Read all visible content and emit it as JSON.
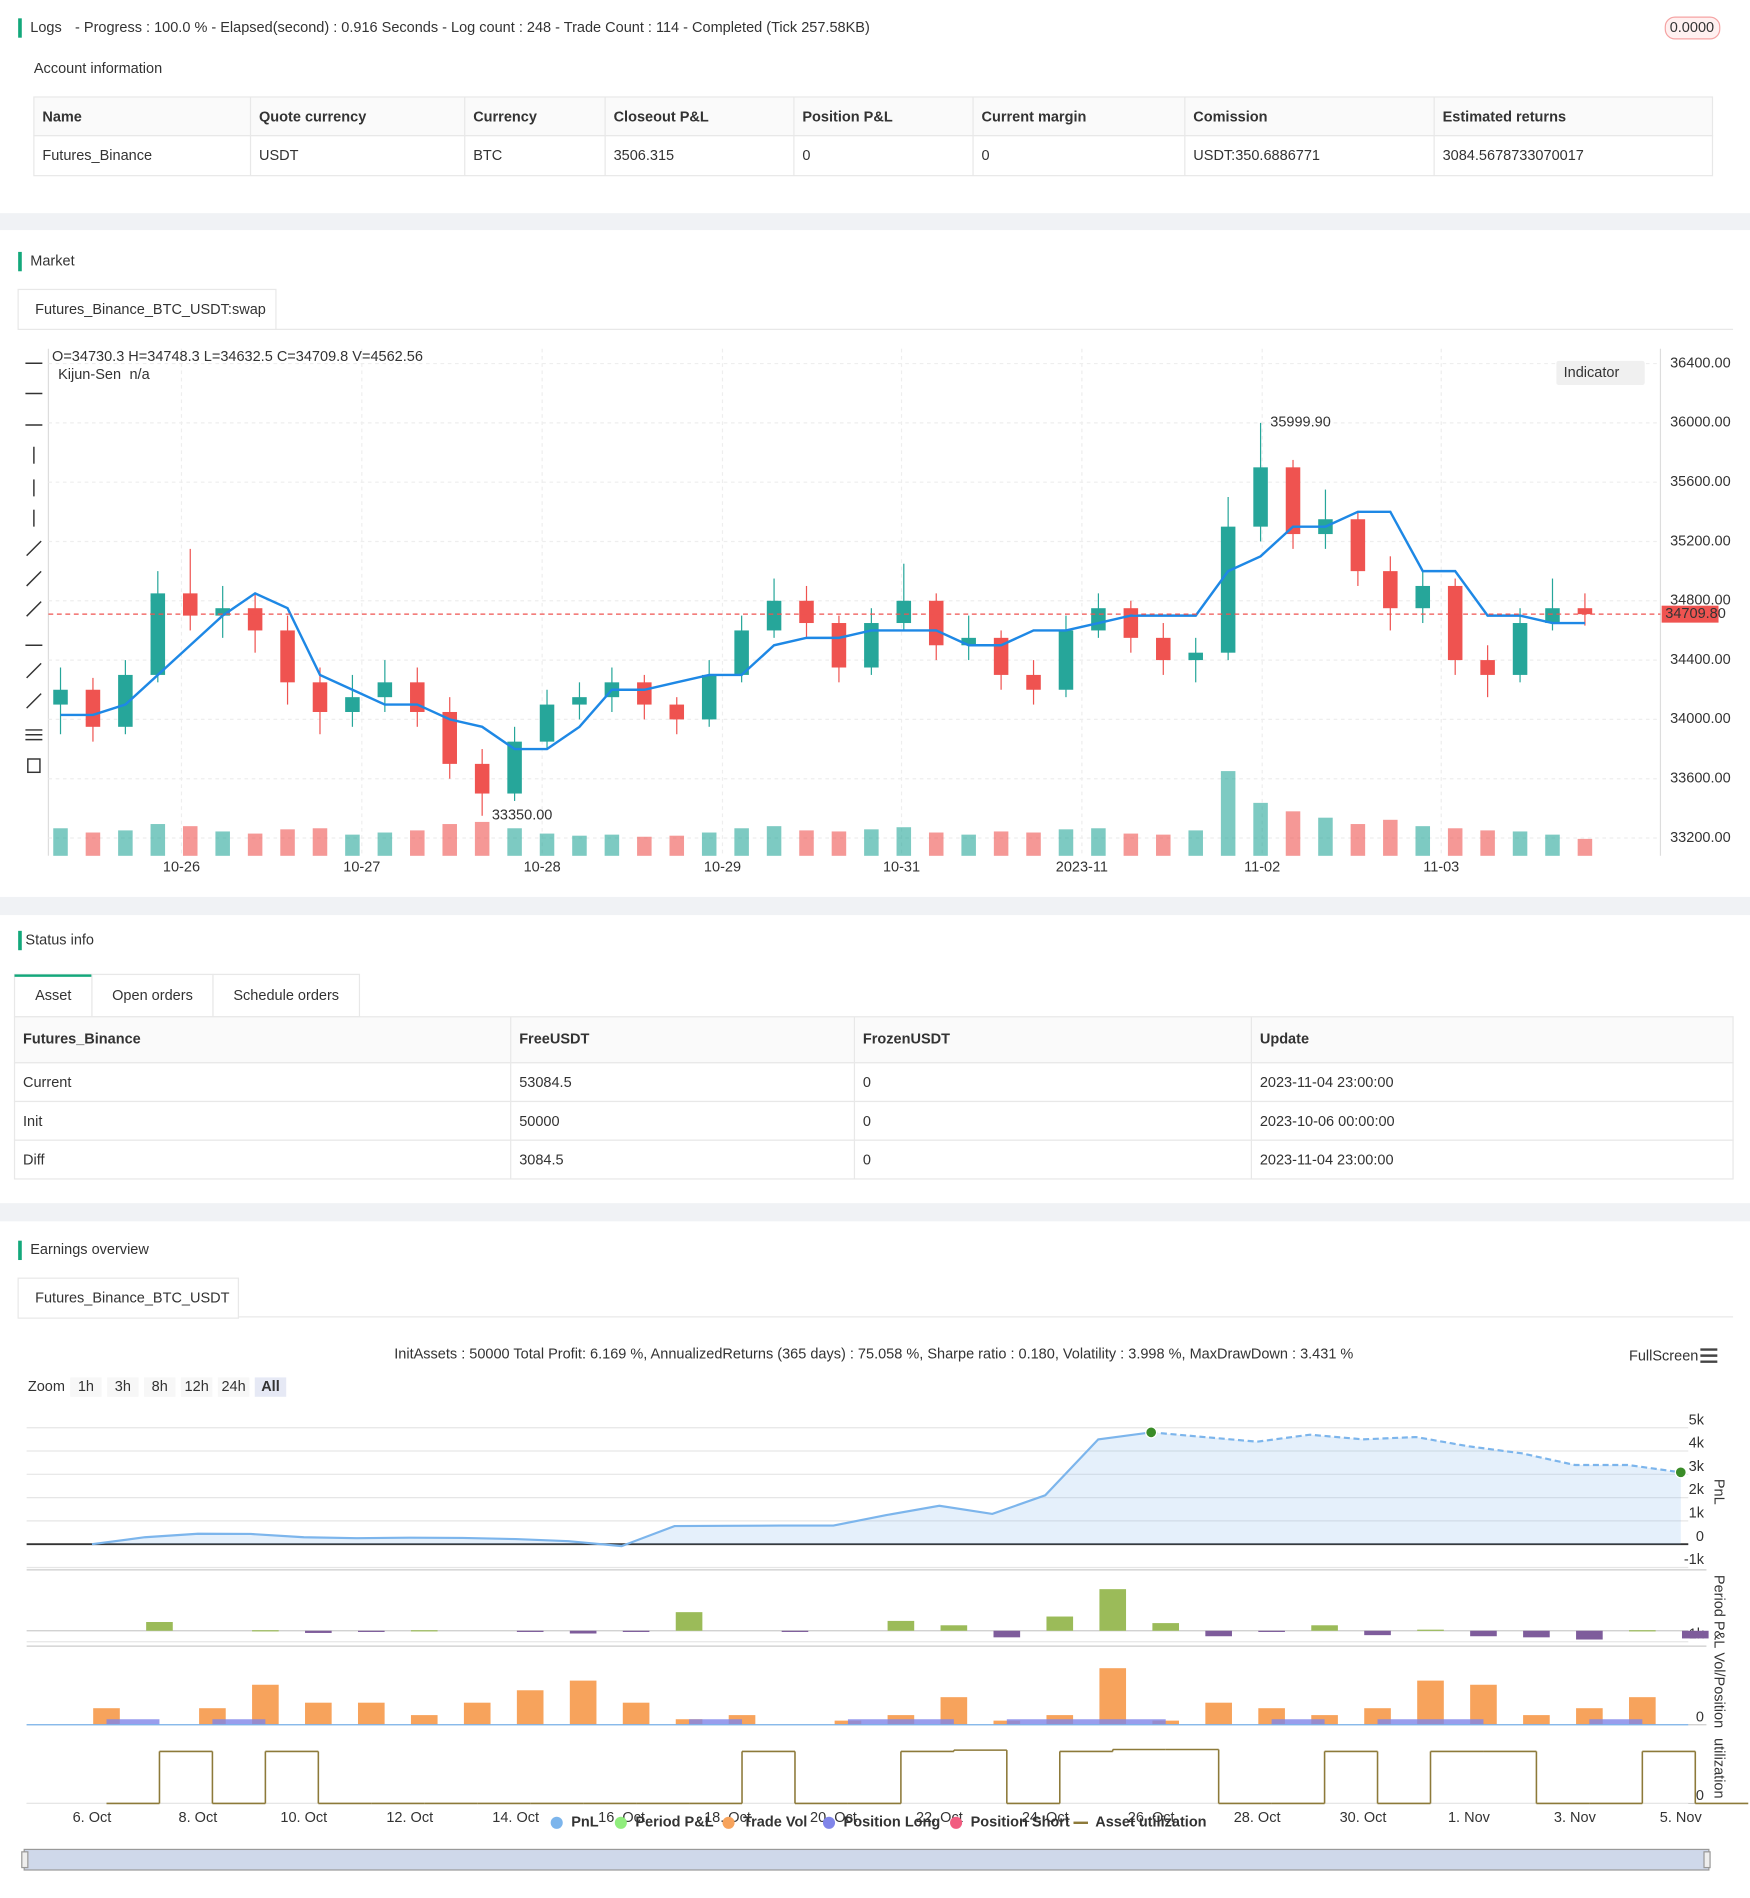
{
  "logs": {
    "title": "Logs",
    "progress": "- Progress : 100.0 % - Elapsed(second) : 0.916 Seconds - Log count : 248 - Trade Count : 114 - Completed (Tick 257.58KB)",
    "badge": "0.0000"
  },
  "account": {
    "title": "Account information",
    "headers": [
      "Name",
      "Quote currency",
      "Currency",
      "Closeout P&L",
      "Position P&L",
      "Current margin",
      "Comission",
      "Estimated returns"
    ],
    "rows": [
      [
        "Futures_Binance",
        "USDT",
        "BTC",
        "3506.315",
        "0",
        "0",
        "USDT:350.6886771",
        "3084.5678733070017"
      ]
    ]
  },
  "market": {
    "title": "Market",
    "tab": "Futures_Binance_BTC_USDT:swap",
    "ohlc": "O=34730.3 H=34748.3 L=34632.5 C=34709.8 V=4562.56",
    "indicator": {
      "name": "Kijun-Sen",
      "value": "n/a"
    },
    "indicator_button": "Indicator",
    "price_label": "34709.80",
    "high_label": "35999.90",
    "low_label": "33350.00",
    "chart_data": {
      "type": "candlestick",
      "up_color": "#26a69a",
      "down_color": "#ef5350",
      "line_color": "#1e88e5",
      "ylim": [
        33080,
        36500
      ],
      "yticks": [
        {
          "value": 33200,
          "label": "33200.00"
        },
        {
          "value": 33600,
          "label": "33600.00"
        },
        {
          "value": 34000,
          "label": "34000.00"
        },
        {
          "value": 34400,
          "label": "34400.00"
        },
        {
          "value": 34800,
          "label": "34800.00"
        },
        {
          "value": 35200,
          "label": "35200.00"
        },
        {
          "value": 35600,
          "label": "35600.00"
        },
        {
          "value": 36000,
          "label": "36000.00"
        },
        {
          "value": 36400,
          "label": "36400.00"
        }
      ],
      "xticks": [
        {
          "value": 3.73,
          "label": "10-26"
        },
        {
          "value": 9.29,
          "label": "10-27"
        },
        {
          "value": 14.85,
          "label": "10-28"
        },
        {
          "value": 20.41,
          "label": "10-29"
        },
        {
          "value": 25.93,
          "label": "10-31"
        },
        {
          "value": 31.49,
          "label": "2023-11"
        },
        {
          "value": 37.05,
          "label": "11-02"
        },
        {
          "value": 42.57,
          "label": "11-03"
        }
      ],
      "candles": [
        [
          34100,
          34350,
          33900,
          34200
        ],
        [
          34200,
          34280,
          33850,
          33950
        ],
        [
          33950,
          34400,
          33900,
          34300
        ],
        [
          34300,
          35000,
          34250,
          34850
        ],
        [
          34850,
          35150,
          34600,
          34700
        ],
        [
          34700,
          34900,
          34550,
          34750
        ],
        [
          34750,
          34850,
          34450,
          34600
        ],
        [
          34600,
          34700,
          34100,
          34250
        ],
        [
          34250,
          34350,
          33900,
          34050
        ],
        [
          34050,
          34300,
          33950,
          34150
        ],
        [
          34150,
          34400,
          34050,
          34250
        ],
        [
          34250,
          34350,
          33950,
          34050
        ],
        [
          34050,
          34150,
          33600,
          33700
        ],
        [
          33700,
          33800,
          33350,
          33500
        ],
        [
          33500,
          33950,
          33450,
          33850
        ],
        [
          33850,
          34200,
          33800,
          34100
        ],
        [
          34100,
          34250,
          34000,
          34150
        ],
        [
          34150,
          34350,
          34050,
          34250
        ],
        [
          34250,
          34300,
          34000,
          34100
        ],
        [
          34100,
          34150,
          33900,
          34000
        ],
        [
          34000,
          34400,
          33950,
          34300
        ],
        [
          34300,
          34700,
          34250,
          34600
        ],
        [
          34600,
          34950,
          34550,
          34800
        ],
        [
          34800,
          34900,
          34550,
          34650
        ],
        [
          34650,
          34700,
          34250,
          34350
        ],
        [
          34350,
          34750,
          34300,
          34650
        ],
        [
          34650,
          35050,
          34600,
          34800
        ],
        [
          34800,
          34850,
          34400,
          34500
        ],
        [
          34500,
          34700,
          34400,
          34550
        ],
        [
          34550,
          34600,
          34200,
          34300
        ],
        [
          34300,
          34400,
          34100,
          34200
        ],
        [
          34200,
          34700,
          34150,
          34600
        ],
        [
          34600,
          34850,
          34550,
          34750
        ],
        [
          34750,
          34800,
          34450,
          34550
        ],
        [
          34550,
          34650,
          34300,
          34400
        ],
        [
          34400,
          34550,
          34250,
          34450
        ],
        [
          34450,
          35500,
          34400,
          35300
        ],
        [
          35300,
          35999.9,
          35200,
          35700
        ],
        [
          35700,
          35750,
          35150,
          35250
        ],
        [
          35250,
          35550,
          35150,
          35350
        ],
        [
          35350,
          35400,
          34900,
          35000
        ],
        [
          35000,
          35100,
          34600,
          34750
        ],
        [
          34750,
          35000,
          34650,
          34900
        ],
        [
          34900,
          34950,
          34300,
          34400
        ],
        [
          34400,
          34500,
          34150,
          34300
        ],
        [
          34300,
          34750,
          34250,
          34650
        ],
        [
          34650,
          34950,
          34600,
          34750
        ],
        [
          34750,
          34850,
          34632.5,
          34709.8
        ]
      ],
      "volumes": [
        2600,
        2200,
        2400,
        3000,
        2800,
        2300,
        2100,
        2500,
        2600,
        2000,
        2200,
        2400,
        3000,
        3200,
        2600,
        2100,
        1900,
        2000,
        1800,
        1900,
        2200,
        2600,
        2800,
        2400,
        2300,
        2500,
        2700,
        2200,
        2000,
        2300,
        2200,
        2500,
        2600,
        2100,
        2000,
        2400,
        8000,
        5000,
        4200,
        3600,
        3000,
        3400,
        2800,
        2600,
        2400,
        2300,
        2000,
        1600
      ],
      "kijun_sen": [
        34030,
        34030,
        34100,
        34300,
        34500,
        34700,
        34850,
        34750,
        34300,
        34200,
        34100,
        34100,
        34000,
        33950,
        33800,
        33800,
        33950,
        34200,
        34200,
        34250,
        34300,
        34300,
        34500,
        34550,
        34550,
        34600,
        34600,
        34600,
        34500,
        34500,
        34600,
        34600,
        34650,
        34700,
        34700,
        34700,
        35000,
        35100,
        35300,
        35300,
        35400,
        35400,
        35000,
        35000,
        34700,
        34700,
        34650,
        34650
      ]
    }
  },
  "status": {
    "title": "Status info",
    "tabs": [
      "Asset",
      "Open orders",
      "Schedule orders"
    ],
    "headers": [
      "Futures_Binance",
      "FreeUSDT",
      "FrozenUSDT",
      "Update"
    ],
    "rows": [
      [
        "Current",
        "53084.5",
        "0",
        "2023-11-04 23:00:00"
      ],
      [
        "Init",
        "50000",
        "0",
        "2023-10-06 00:00:00"
      ],
      [
        "Diff",
        "3084.5",
        "0",
        "2023-11-04 23:00:00"
      ]
    ]
  },
  "earnings": {
    "title": "Earnings overview",
    "tab": "Futures_Binance_BTC_USDT",
    "summary": "InitAssets : 50000 Total Profit: 6.169 %, AnnualizedReturns (365 days) : 75.058 %, Sharpe ratio : 0.180, Volatility : 3.998 %, MaxDrawDown : 3.431 %",
    "zoom_label": "Zoom",
    "zoom_buttons": [
      "1h",
      "3h",
      "8h",
      "12h",
      "24h",
      "All"
    ],
    "fullscreen": "FullScreen",
    "xticks": [
      {
        "value": 0,
        "label": "6. Oct"
      },
      {
        "value": 2,
        "label": "8. Oct"
      },
      {
        "value": 4,
        "label": "10. Oct"
      },
      {
        "value": 6,
        "label": "12. Oct"
      },
      {
        "value": 8,
        "label": "14. Oct"
      },
      {
        "value": 10,
        "label": "16. Oct"
      },
      {
        "value": 12,
        "label": "18. Oct"
      },
      {
        "value": 14,
        "label": "20. Oct"
      },
      {
        "value": 16,
        "label": "22. Oct"
      },
      {
        "value": 18,
        "label": "24. Oct"
      },
      {
        "value": 20,
        "label": "26. Oct"
      },
      {
        "value": 22,
        "label": "28. Oct"
      },
      {
        "value": 24,
        "label": "30. Oct"
      },
      {
        "value": 26,
        "label": "1. Nov"
      },
      {
        "value": 28,
        "label": "3. Nov"
      },
      {
        "value": 30,
        "label": "5. Nov"
      }
    ],
    "legend": [
      {
        "name": "PnL",
        "color": "#7cb5ec"
      },
      {
        "name": "Period P&L",
        "color": "#90ed7d"
      },
      {
        "name": "Trade Vol",
        "color": "#f7a35c"
      },
      {
        "name": "Position Long",
        "color": "#8085e9"
      },
      {
        "name": "Position Short",
        "color": "#f15c80"
      },
      {
        "name": "Asset utilization",
        "color": "#8d7a3a"
      }
    ],
    "pnl": {
      "type": "line",
      "axis_label": "PnL",
      "color": "#7cb5ec",
      "ylim": [
        -1100,
        5600
      ],
      "yticks": [
        {
          "value": -1000,
          "label": "-1k"
        },
        0,
        {
          "value": 1000,
          "label": "1k"
        },
        {
          "value": 2000,
          "label": "2k"
        },
        {
          "value": 3000,
          "label": "3k"
        },
        {
          "value": 4000,
          "label": "4k"
        },
        {
          "value": 5000,
          "label": "5k"
        }
      ],
      "values": [
        0,
        300,
        450,
        440,
        300,
        260,
        280,
        270,
        220,
        130,
        -80,
        780,
        790,
        800,
        800,
        1250,
        1650,
        1300,
        2100,
        4500,
        4800,
        4600,
        4400,
        4700,
        4500,
        4600,
        4200,
        3900,
        3400,
        3400,
        3084.5
      ]
    },
    "period": {
      "type": "bar",
      "axis_label": "Period P&L",
      "positive_color": "#9bbb59",
      "negative_color": "#7e5c9b",
      "ylim": [
        -1400,
        4900
      ],
      "yticks": [
        {
          "value": -1000,
          "label": "-1k"
        }
      ],
      "x": [
        1,
        3,
        4,
        5,
        6,
        8,
        9,
        10,
        11,
        13,
        15,
        16,
        17,
        18,
        19,
        20,
        21,
        22,
        23,
        24,
        25,
        26,
        27,
        28,
        29,
        30
      ],
      "values": [
        800,
        50,
        -200,
        -100,
        50,
        -50,
        -250,
        -50,
        1700,
        -100,
        900,
        500,
        -600,
        1300,
        3800,
        700,
        -500,
        -100,
        500,
        -400,
        100,
        -500,
        -600,
        -800,
        50,
        -700
      ]
    },
    "volume": {
      "type": "bar",
      "axis_label": "Vol/Position",
      "ylim": [
        0,
        50
      ],
      "yticks": [
        0
      ],
      "trade_vol": {
        "color": "#f7a35c",
        "x": [
          0,
          2,
          3,
          4,
          5,
          6,
          7,
          8,
          9,
          10,
          11,
          12,
          14,
          15,
          16,
          17,
          18,
          19,
          20,
          21,
          22,
          23,
          24,
          25,
          26,
          27,
          28,
          29
        ],
        "values": [
          12,
          12,
          29,
          16,
          16,
          7,
          16,
          25,
          32,
          16,
          4,
          7,
          3,
          7,
          20,
          3,
          7,
          41,
          3,
          16,
          12,
          7,
          12,
          32,
          29,
          7,
          12,
          20
        ]
      },
      "position_long": {
        "color": "#8085e9",
        "x": [
          0,
          2,
          11,
          14,
          17,
          22,
          24,
          28
        ],
        "x_end": [
          1,
          3,
          12,
          16,
          20,
          23,
          26,
          29
        ],
        "values": [
          4,
          4,
          4,
          4,
          4,
          4,
          4,
          4
        ]
      }
    },
    "utilization": {
      "type": "step",
      "axis_label": "utilization",
      "color": "#8d7a3a",
      "ylim": [
        0,
        1.08
      ],
      "yticks": [
        0
      ],
      "values": [
        0,
        0.8,
        0,
        0.8,
        0,
        0,
        0,
        0,
        0,
        0,
        0,
        0,
        0.8,
        0,
        0,
        0.8,
        0.82,
        0,
        0.8,
        0.83,
        0.83,
        0,
        0,
        0.8,
        0,
        0.8,
        0.8,
        0,
        0,
        0.8,
        0
      ]
    }
  }
}
